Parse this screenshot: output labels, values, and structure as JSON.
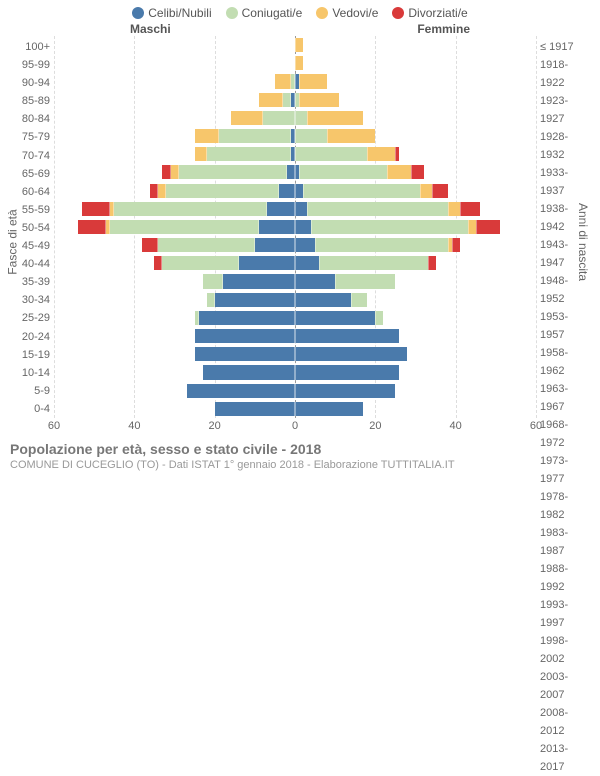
{
  "legend": [
    {
      "label": "Celibi/Nubili",
      "color": "#4a7aab"
    },
    {
      "label": "Coniugati/e",
      "color": "#c2ddb2"
    },
    {
      "label": "Vedovi/e",
      "color": "#f7c66b"
    },
    {
      "label": "Divorziati/e",
      "color": "#d93a3a"
    }
  ],
  "side_labels": {
    "left": "Maschi",
    "right": "Femmine"
  },
  "axis_titles": {
    "left": "Fasce di età",
    "right": "Anni di nascita"
  },
  "x_axis": {
    "max": 60,
    "ticks": [
      60,
      40,
      20,
      0,
      20,
      40,
      60
    ]
  },
  "age_labels": [
    "100+",
    "95-99",
    "90-94",
    "85-89",
    "80-84",
    "75-79",
    "70-74",
    "65-69",
    "60-64",
    "55-59",
    "50-54",
    "45-49",
    "40-44",
    "35-39",
    "30-34",
    "25-29",
    "20-24",
    "15-19",
    "10-14",
    "5-9",
    "0-4"
  ],
  "birth_labels": [
    "≤ 1917",
    "1918-1922",
    "1923-1927",
    "1928-1932",
    "1933-1937",
    "1938-1942",
    "1943-1947",
    "1948-1952",
    "1953-1957",
    "1958-1962",
    "1963-1967",
    "1968-1972",
    "1973-1977",
    "1978-1982",
    "1983-1987",
    "1988-1992",
    "1993-1997",
    "1998-2002",
    "2003-2007",
    "2008-2012",
    "2013-2017"
  ],
  "rows": [
    {
      "m": [
        0,
        0,
        0,
        0
      ],
      "f": [
        0,
        0,
        2,
        0
      ]
    },
    {
      "m": [
        0,
        0,
        0,
        0
      ],
      "f": [
        0,
        0,
        2,
        0
      ]
    },
    {
      "m": [
        0,
        1,
        4,
        0
      ],
      "f": [
        1,
        0,
        7,
        0
      ]
    },
    {
      "m": [
        1,
        2,
        6,
        0
      ],
      "f": [
        0,
        1,
        10,
        0
      ]
    },
    {
      "m": [
        0,
        8,
        8,
        0
      ],
      "f": [
        0,
        3,
        14,
        0
      ]
    },
    {
      "m": [
        1,
        18,
        6,
        0
      ],
      "f": [
        0,
        8,
        12,
        0
      ]
    },
    {
      "m": [
        1,
        21,
        3,
        0
      ],
      "f": [
        0,
        18,
        7,
        1
      ]
    },
    {
      "m": [
        2,
        27,
        2,
        2
      ],
      "f": [
        1,
        22,
        6,
        3
      ]
    },
    {
      "m": [
        4,
        28,
        2,
        2
      ],
      "f": [
        2,
        29,
        3,
        4
      ]
    },
    {
      "m": [
        7,
        38,
        1,
        7
      ],
      "f": [
        3,
        35,
        3,
        5
      ]
    },
    {
      "m": [
        9,
        37,
        1,
        7
      ],
      "f": [
        4,
        39,
        2,
        6
      ]
    },
    {
      "m": [
        10,
        24,
        0,
        4
      ],
      "f": [
        5,
        33,
        1,
        2
      ]
    },
    {
      "m": [
        14,
        19,
        0,
        2
      ],
      "f": [
        6,
        27,
        0,
        2
      ]
    },
    {
      "m": [
        18,
        5,
        0,
        0
      ],
      "f": [
        10,
        15,
        0,
        0
      ]
    },
    {
      "m": [
        20,
        2,
        0,
        0
      ],
      "f": [
        14,
        4,
        0,
        0
      ]
    },
    {
      "m": [
        24,
        1,
        0,
        0
      ],
      "f": [
        20,
        2,
        0,
        0
      ]
    },
    {
      "m": [
        25,
        0,
        0,
        0
      ],
      "f": [
        26,
        0,
        0,
        0
      ]
    },
    {
      "m": [
        25,
        0,
        0,
        0
      ],
      "f": [
        28,
        0,
        0,
        0
      ]
    },
    {
      "m": [
        23,
        0,
        0,
        0
      ],
      "f": [
        26,
        0,
        0,
        0
      ]
    },
    {
      "m": [
        27,
        0,
        0,
        0
      ],
      "f": [
        25,
        0,
        0,
        0
      ]
    },
    {
      "m": [
        20,
        0,
        0,
        0
      ],
      "f": [
        17,
        0,
        0,
        0
      ]
    }
  ],
  "footer": {
    "title": "Popolazione per età, sesso e stato civile - 2018",
    "sub": "COMUNE DI CUCEGLIO (TO) - Dati ISTAT 1° gennaio 2018 - Elaborazione TUTTITALIA.IT"
  },
  "colors": {
    "background": "#ffffff",
    "grid": "#dddddd",
    "center": "#999999",
    "text": "#666666"
  }
}
